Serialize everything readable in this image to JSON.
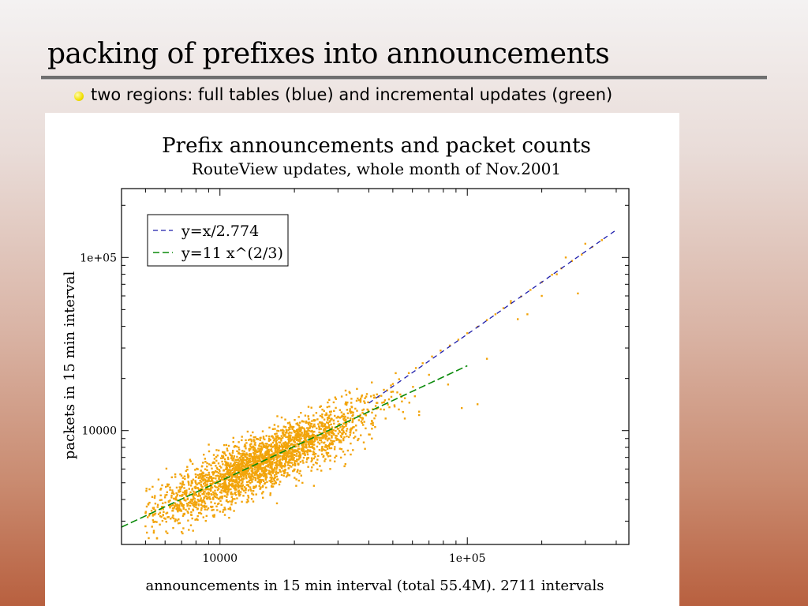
{
  "slide": {
    "title": "packing of prefixes into announcements",
    "bullet": "two regions:  full tables (blue) and incremental updates (green)",
    "bullet_color": "#f2e000"
  },
  "chart_data": {
    "type": "scatter",
    "title": "Prefix announcements and packet counts",
    "subtitle": "RouteView updates, whole month of Nov.2001",
    "xlabel": "announcements in 15 min interval (total 55.4M). 2711 intervals",
    "ylabel": "packets in 15 min interval",
    "x_scale": "log",
    "y_scale": "log",
    "xlim": [
      4000,
      450000
    ],
    "ylim": [
      2200,
      250000
    ],
    "x_ticks": [
      {
        "value": 10000,
        "label": "10000"
      },
      {
        "value": 100000,
        "label": "1e+05"
      }
    ],
    "y_ticks": [
      {
        "value": 10000,
        "label": "10000"
      },
      {
        "value": 100000,
        "label": "1e+05"
      }
    ],
    "grid": false,
    "legend_position": "top-left",
    "point_color": "#f2a40a",
    "point_count": 2711,
    "cluster": {
      "x_from": 5000,
      "x_to": 100000,
      "fit": "y=11 x^(2/3)",
      "scatter": 0.08
    },
    "cluster_outliers": [
      [
        5000,
        2800
      ],
      [
        7000,
        2600
      ],
      [
        9000,
        4300
      ],
      [
        13000,
        3900
      ],
      [
        17000,
        3800
      ],
      [
        24000,
        4800
      ],
      [
        40000,
        9500
      ],
      [
        55000,
        12800
      ],
      [
        70000,
        21000
      ],
      [
        95000,
        13500
      ],
      [
        110000,
        14200
      ],
      [
        120000,
        26000
      ],
      [
        150000,
        56000
      ],
      [
        160000,
        44000
      ],
      [
        175000,
        47000
      ],
      [
        200000,
        60000
      ],
      [
        230000,
        80000
      ],
      [
        280000,
        62000
      ],
      [
        250000,
        100000
      ],
      [
        300000,
        120000
      ]
    ],
    "upper_branch": [
      [
        42000,
        15500
      ],
      [
        46000,
        17200
      ],
      [
        50000,
        18600
      ],
      [
        53000,
        19800
      ],
      [
        58000,
        21500
      ],
      [
        62000,
        23000
      ],
      [
        66000,
        24500
      ],
      [
        72000,
        26800
      ],
      [
        78000,
        29000
      ],
      [
        85000,
        31000
      ],
      [
        92000,
        33500
      ],
      [
        100000,
        36500
      ],
      [
        110000,
        39800
      ],
      [
        120000,
        43500
      ],
      [
        130000,
        47000
      ],
      [
        140000,
        51000
      ],
      [
        150000,
        54500
      ],
      [
        165000,
        59500
      ],
      [
        180000,
        65000
      ],
      [
        200000,
        72000
      ],
      [
        220000,
        79500
      ],
      [
        240000,
        86500
      ],
      [
        265000,
        95500
      ],
      [
        290000,
        104000
      ],
      [
        320000,
        115000
      ],
      [
        350000,
        126000
      ]
    ],
    "series": [
      {
        "name": "y=x/2.774",
        "color": "#1d1dab",
        "dash": "6 5",
        "x_range": [
          40000,
          400000
        ]
      },
      {
        "name": "y=11 x^(2/3)",
        "color": "#0a8a0a",
        "dash": "9 4",
        "x_range": [
          4000,
          100000
        ]
      }
    ]
  }
}
